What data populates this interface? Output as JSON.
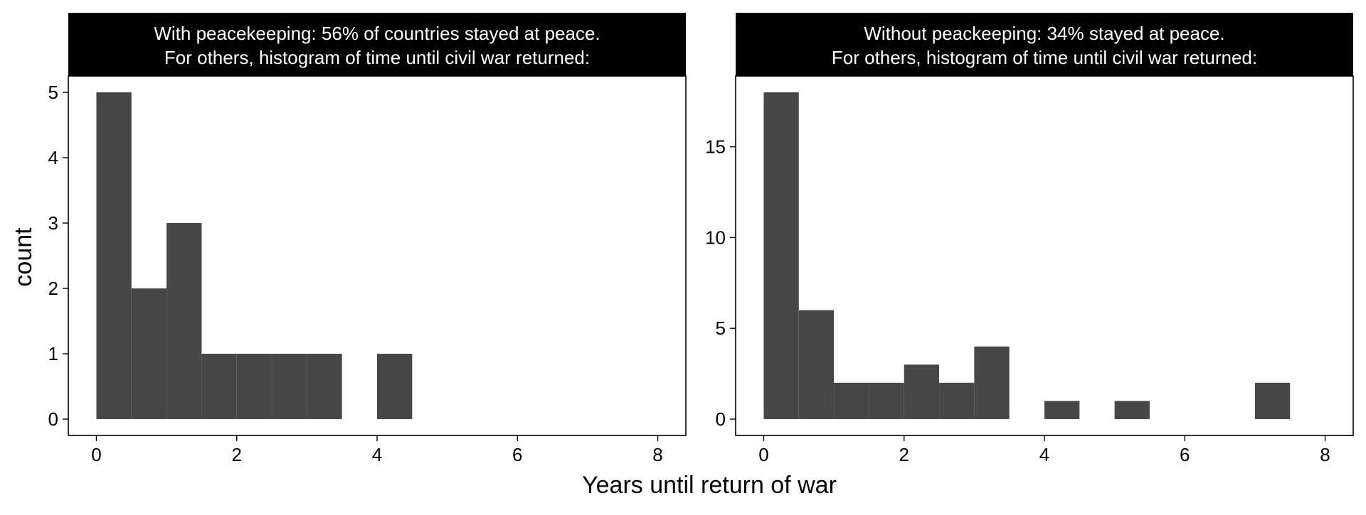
{
  "chart_data": {
    "xlabel": "Years until return of war",
    "ylabel": "count",
    "bar_color": "#474747",
    "strip_bg": "#000000",
    "strip_text_color": "#ffffff",
    "panels": [
      {
        "type": "bar",
        "strip_line1": "With peacekeeping: 56% of countries stayed at peace.",
        "strip_line2": "For others, histogram of time until civil war returned:",
        "bin_width": 0.5,
        "bin_starts": [
          0,
          0.5,
          1,
          1.5,
          2,
          2.5,
          3,
          3.5,
          4
        ],
        "counts": [
          5,
          2,
          3,
          1,
          1,
          1,
          1,
          0,
          1
        ],
        "xlim": [
          -0.4,
          8.4
        ],
        "ylim": [
          -0.25,
          5.25
        ],
        "xticks": [
          0,
          2,
          4,
          6,
          8
        ],
        "yticks": [
          0,
          1,
          2,
          3,
          4,
          5
        ]
      },
      {
        "type": "bar",
        "strip_line1": "Without peackeeping: 34% stayed at peace.",
        "strip_line2": "For others, histogram of time until civil war returned:",
        "bin_width": 0.5,
        "bin_starts": [
          0,
          0.5,
          1,
          1.5,
          2,
          2.5,
          3,
          3.5,
          4,
          4.5,
          5,
          5.5,
          6,
          6.5,
          7
        ],
        "counts": [
          18,
          6,
          2,
          2,
          3,
          2,
          4,
          0,
          1,
          0,
          1,
          0,
          0,
          0,
          2
        ],
        "xlim": [
          -0.4,
          8.4
        ],
        "ylim": [
          -0.9,
          18.9
        ],
        "xticks": [
          0,
          2,
          4,
          6,
          8
        ],
        "yticks": [
          0,
          5,
          10,
          15
        ]
      }
    ]
  }
}
